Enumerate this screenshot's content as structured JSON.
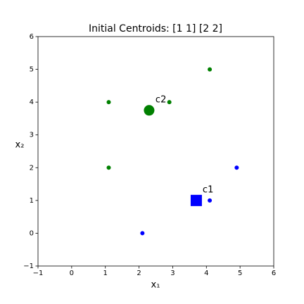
{
  "chart_data": {
    "type": "scatter",
    "title": "Initial Centroids: [1 1] [2 2]",
    "xlabel": "x₁",
    "ylabel": "x₂",
    "xlim": [
      -1,
      6
    ],
    "ylim": [
      -1,
      6
    ],
    "xticks": [
      {
        "value": -1,
        "label": "−1"
      },
      0,
      1,
      2,
      3,
      4,
      5,
      6
    ],
    "yticks": [
      {
        "value": -1,
        "label": "−1"
      },
      0,
      1,
      2,
      3,
      4,
      5,
      6
    ],
    "series": [
      {
        "color": "green",
        "marker": "circle",
        "x": [
          4.1,
          1.1,
          2.9,
          1.1
        ],
        "y": [
          5,
          4,
          4,
          2
        ]
      },
      {
        "color": "blue",
        "marker": "circle",
        "x": [
          4.9,
          4.1,
          2.1
        ],
        "y": [
          2,
          1,
          0
        ]
      },
      {
        "color": "blue",
        "marker": "square",
        "x": [
          3.7
        ],
        "y": [
          1
        ],
        "labels": [
          "c1"
        ]
      },
      {
        "color": "green",
        "marker": "big-circle",
        "x": [
          2.3
        ],
        "y": [
          3.75
        ],
        "labels": [
          "c2"
        ]
      }
    ]
  }
}
